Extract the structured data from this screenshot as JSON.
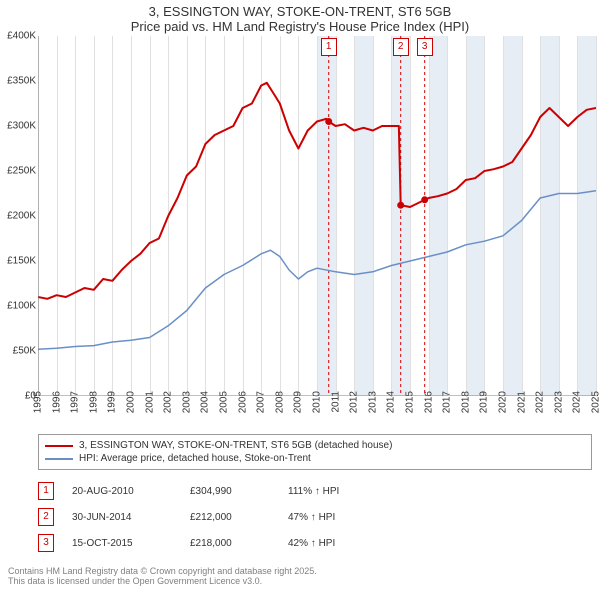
{
  "title": "3, ESSINGTON WAY, STOKE-ON-TRENT, ST6 5GB",
  "subtitle": "Price paid vs. HM Land Registry's House Price Index (HPI)",
  "chart": {
    "type": "line",
    "background_color": "#ffffff",
    "grid_color": "#e0e0e0",
    "axis_color": "#808080",
    "y": {
      "min": 0,
      "max": 400000,
      "ticks": [
        0,
        50000,
        100000,
        150000,
        200000,
        250000,
        300000,
        350000,
        400000
      ],
      "tick_labels": [
        "£0",
        "£50K",
        "£100K",
        "£150K",
        "£200K",
        "£250K",
        "£300K",
        "£350K",
        "£400K"
      ]
    },
    "x": {
      "min": 1995,
      "max": 2025,
      "ticks": [
        1995,
        1996,
        1997,
        1998,
        1999,
        2000,
        2001,
        2002,
        2003,
        2004,
        2005,
        2006,
        2007,
        2008,
        2009,
        2010,
        2011,
        2012,
        2013,
        2014,
        2015,
        2016,
        2017,
        2018,
        2019,
        2020,
        2021,
        2022,
        2023,
        2024,
        2025
      ]
    },
    "alt_bands": {
      "color": "#e6edf5",
      "years": [
        2010,
        2012,
        2014,
        2016,
        2018,
        2020,
        2022,
        2024
      ]
    },
    "series": [
      {
        "name": "3, ESSINGTON WAY, STOKE-ON-TRENT, ST6 5GB (detached house)",
        "color": "#cc0000",
        "width": 2,
        "points": [
          [
            1995.0,
            110000
          ],
          [
            1995.5,
            108000
          ],
          [
            1996.0,
            112000
          ],
          [
            1996.5,
            110000
          ],
          [
            1997.0,
            115000
          ],
          [
            1997.5,
            120000
          ],
          [
            1998.0,
            118000
          ],
          [
            1998.5,
            130000
          ],
          [
            1999.0,
            128000
          ],
          [
            1999.5,
            140000
          ],
          [
            2000.0,
            150000
          ],
          [
            2000.5,
            158000
          ],
          [
            2001.0,
            170000
          ],
          [
            2001.5,
            175000
          ],
          [
            2002.0,
            200000
          ],
          [
            2002.5,
            220000
          ],
          [
            2003.0,
            245000
          ],
          [
            2003.5,
            255000
          ],
          [
            2004.0,
            280000
          ],
          [
            2004.5,
            290000
          ],
          [
            2005.0,
            295000
          ],
          [
            2005.5,
            300000
          ],
          [
            2006.0,
            320000
          ],
          [
            2006.5,
            325000
          ],
          [
            2007.0,
            345000
          ],
          [
            2007.3,
            348000
          ],
          [
            2007.7,
            335000
          ],
          [
            2008.0,
            325000
          ],
          [
            2008.5,
            295000
          ],
          [
            2009.0,
            275000
          ],
          [
            2009.5,
            295000
          ],
          [
            2010.0,
            305000
          ],
          [
            2010.5,
            308000
          ],
          [
            2010.63,
            304990
          ],
          [
            2011.0,
            300000
          ],
          [
            2011.5,
            302000
          ],
          [
            2012.0,
            295000
          ],
          [
            2012.5,
            298000
          ],
          [
            2013.0,
            295000
          ],
          [
            2013.5,
            300000
          ],
          [
            2014.0,
            300000
          ],
          [
            2014.4,
            300000
          ],
          [
            2014.5,
            212000
          ],
          [
            2015.0,
            210000
          ],
          [
            2015.5,
            215000
          ],
          [
            2015.79,
            218000
          ],
          [
            2016.0,
            220000
          ],
          [
            2016.5,
            222000
          ],
          [
            2017.0,
            225000
          ],
          [
            2017.5,
            230000
          ],
          [
            2018.0,
            240000
          ],
          [
            2018.5,
            242000
          ],
          [
            2019.0,
            250000
          ],
          [
            2019.5,
            252000
          ],
          [
            2020.0,
            255000
          ],
          [
            2020.5,
            260000
          ],
          [
            2021.0,
            275000
          ],
          [
            2021.5,
            290000
          ],
          [
            2022.0,
            310000
          ],
          [
            2022.5,
            320000
          ],
          [
            2023.0,
            310000
          ],
          [
            2023.5,
            300000
          ],
          [
            2024.0,
            310000
          ],
          [
            2024.5,
            318000
          ],
          [
            2025.0,
            320000
          ]
        ]
      },
      {
        "name": "HPI: Average price, detached house, Stoke-on-Trent",
        "color": "#6a8fc7",
        "width": 1.5,
        "points": [
          [
            1995.0,
            52000
          ],
          [
            1996.0,
            53000
          ],
          [
            1997.0,
            55000
          ],
          [
            1998.0,
            56000
          ],
          [
            1999.0,
            60000
          ],
          [
            2000.0,
            62000
          ],
          [
            2001.0,
            65000
          ],
          [
            2002.0,
            78000
          ],
          [
            2003.0,
            95000
          ],
          [
            2004.0,
            120000
          ],
          [
            2005.0,
            135000
          ],
          [
            2006.0,
            145000
          ],
          [
            2007.0,
            158000
          ],
          [
            2007.5,
            162000
          ],
          [
            2008.0,
            155000
          ],
          [
            2008.5,
            140000
          ],
          [
            2009.0,
            130000
          ],
          [
            2009.5,
            138000
          ],
          [
            2010.0,
            142000
          ],
          [
            2011.0,
            138000
          ],
          [
            2012.0,
            135000
          ],
          [
            2013.0,
            138000
          ],
          [
            2014.0,
            145000
          ],
          [
            2015.0,
            150000
          ],
          [
            2016.0,
            155000
          ],
          [
            2017.0,
            160000
          ],
          [
            2018.0,
            168000
          ],
          [
            2019.0,
            172000
          ],
          [
            2020.0,
            178000
          ],
          [
            2021.0,
            195000
          ],
          [
            2022.0,
            220000
          ],
          [
            2023.0,
            225000
          ],
          [
            2024.0,
            225000
          ],
          [
            2025.0,
            228000
          ]
        ]
      }
    ],
    "markers": [
      {
        "label": "1",
        "year": 2010.63,
        "color": "#cc0000"
      },
      {
        "label": "2",
        "year": 2014.5,
        "color": "#cc0000"
      },
      {
        "label": "3",
        "year": 2015.79,
        "color": "#cc0000"
      }
    ]
  },
  "legend": [
    {
      "color": "#cc0000",
      "label": "3, ESSINGTON WAY, STOKE-ON-TRENT, ST6 5GB (detached house)"
    },
    {
      "color": "#6a8fc7",
      "label": "HPI: Average price, detached house, Stoke-on-Trent"
    }
  ],
  "datapoints": [
    {
      "n": "1",
      "color": "#cc0000",
      "date": "20-AUG-2010",
      "price": "£304,990",
      "pct": "111% ↑ HPI"
    },
    {
      "n": "2",
      "color": "#cc0000",
      "date": "30-JUN-2014",
      "price": "£212,000",
      "pct": "47% ↑ HPI"
    },
    {
      "n": "3",
      "color": "#cc0000",
      "date": "15-OCT-2015",
      "price": "£218,000",
      "pct": "42% ↑ HPI"
    }
  ],
  "footer": {
    "line1": "Contains HM Land Registry data © Crown copyright and database right 2025.",
    "line2": "This data is licensed under the Open Government Licence v3.0."
  }
}
